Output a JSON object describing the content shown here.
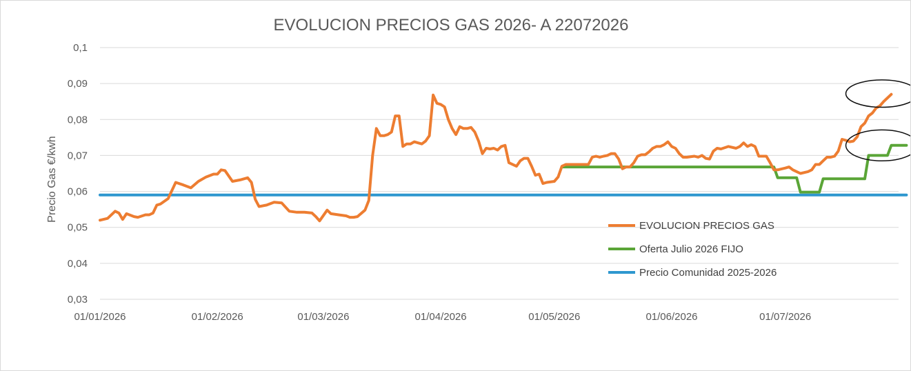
{
  "chart_data": {
    "type": "line",
    "title": "EVOLUCION PRECIOS GAS 2026- A 22072026",
    "xlabel": "",
    "ylabel": "Precio Gas €/kwh",
    "ylim": [
      0.03,
      0.1
    ],
    "yticks": [
      "0,03",
      "0,04",
      "0,05",
      "0,06",
      "0,07",
      "0,08",
      "0,09",
      "0,1"
    ],
    "ytick_values": [
      0.03,
      0.04,
      0.05,
      0.06,
      0.07,
      0.08,
      0.09,
      0.1
    ],
    "xticks": [
      "01/01/2026",
      "01/02/2026",
      "01/03/2026",
      "01/04/2026",
      "01/05/2026",
      "01/06/2026",
      "01/07/2026"
    ],
    "xtick_days": [
      0,
      31,
      59,
      90,
      120,
      151,
      181
    ],
    "xlim_days": [
      0,
      204
    ],
    "grid": "horizontal",
    "legend_position": "bottom-right",
    "series": [
      {
        "name": "EVOLUCION PRECIOS GAS",
        "color": "#ed7d31",
        "points": [
          [
            0,
            0.052
          ],
          [
            2,
            0.0525
          ],
          [
            4,
            0.0545
          ],
          [
            5,
            0.054
          ],
          [
            6,
            0.0522
          ],
          [
            7,
            0.0538
          ],
          [
            9,
            0.053
          ],
          [
            10,
            0.0528
          ],
          [
            12,
            0.0535
          ],
          [
            13,
            0.0535
          ],
          [
            14,
            0.054
          ],
          [
            15,
            0.0562
          ],
          [
            16,
            0.0565
          ],
          [
            18,
            0.058
          ],
          [
            20,
            0.0625
          ],
          [
            22,
            0.0618
          ],
          [
            24,
            0.061
          ],
          [
            26,
            0.0628
          ],
          [
            28,
            0.064
          ],
          [
            30,
            0.0648
          ],
          [
            31,
            0.0648
          ],
          [
            32,
            0.066
          ],
          [
            33,
            0.0658
          ],
          [
            35,
            0.0628
          ],
          [
            37,
            0.0632
          ],
          [
            39,
            0.0638
          ],
          [
            40,
            0.0625
          ],
          [
            41,
            0.0578
          ],
          [
            42,
            0.0558
          ],
          [
            44,
            0.0562
          ],
          [
            46,
            0.057
          ],
          [
            48,
            0.0568
          ],
          [
            50,
            0.0545
          ],
          [
            52,
            0.0542
          ],
          [
            54,
            0.0542
          ],
          [
            56,
            0.054
          ],
          [
            57,
            0.053
          ],
          [
            58,
            0.0518
          ],
          [
            60,
            0.0548
          ],
          [
            61,
            0.0538
          ],
          [
            63,
            0.0535
          ],
          [
            65,
            0.0532
          ],
          [
            66,
            0.0528
          ],
          [
            67,
            0.0528
          ],
          [
            68,
            0.053
          ],
          [
            70,
            0.0548
          ],
          [
            71,
            0.0575
          ],
          [
            72,
            0.07
          ],
          [
            73,
            0.0775
          ],
          [
            74,
            0.0755
          ],
          [
            75,
            0.0755
          ],
          [
            76,
            0.0758
          ],
          [
            77,
            0.0765
          ],
          [
            78,
            0.081
          ],
          [
            79,
            0.081
          ],
          [
            80,
            0.0725
          ],
          [
            81,
            0.0732
          ],
          [
            82,
            0.0732
          ],
          [
            83,
            0.0738
          ],
          [
            84,
            0.0735
          ],
          [
            85,
            0.0732
          ],
          [
            86,
            0.074
          ],
          [
            87,
            0.0755
          ],
          [
            88,
            0.0868
          ],
          [
            89,
            0.0845
          ],
          [
            90,
            0.0842
          ],
          [
            91,
            0.0835
          ],
          [
            92,
            0.08
          ],
          [
            93,
            0.0775
          ],
          [
            94,
            0.0758
          ],
          [
            95,
            0.078
          ],
          [
            96,
            0.0775
          ],
          [
            97,
            0.0775
          ],
          [
            98,
            0.0778
          ],
          [
            99,
            0.0765
          ],
          [
            100,
            0.074
          ],
          [
            101,
            0.0705
          ],
          [
            102,
            0.072
          ],
          [
            103,
            0.0718
          ],
          [
            104,
            0.072
          ],
          [
            105,
            0.0715
          ],
          [
            106,
            0.0725
          ],
          [
            107,
            0.0728
          ],
          [
            108,
            0.068
          ],
          [
            110,
            0.067
          ],
          [
            111,
            0.0685
          ],
          [
            112,
            0.0692
          ],
          [
            113,
            0.0692
          ],
          [
            114,
            0.067
          ],
          [
            115,
            0.0645
          ],
          [
            116,
            0.0648
          ],
          [
            117,
            0.0622
          ],
          [
            118,
            0.0625
          ],
          [
            120,
            0.0628
          ],
          [
            121,
            0.064
          ],
          [
            122,
            0.067
          ],
          [
            123,
            0.0675
          ],
          [
            125,
            0.0675
          ],
          [
            127,
            0.0675
          ],
          [
            129,
            0.0675
          ],
          [
            130,
            0.0695
          ],
          [
            131,
            0.0698
          ],
          [
            132,
            0.0695
          ],
          [
            133,
            0.0698
          ],
          [
            134,
            0.07
          ],
          [
            135,
            0.0705
          ],
          [
            136,
            0.0705
          ],
          [
            137,
            0.069
          ],
          [
            138,
            0.0663
          ],
          [
            139,
            0.0668
          ],
          [
            140,
            0.0668
          ],
          [
            141,
            0.068
          ],
          [
            142,
            0.0698
          ],
          [
            143,
            0.0702
          ],
          [
            144,
            0.0702
          ],
          [
            145,
            0.071
          ],
          [
            146,
            0.072
          ],
          [
            147,
            0.0725
          ],
          [
            148,
            0.0725
          ],
          [
            149,
            0.073
          ],
          [
            150,
            0.0738
          ],
          [
            151,
            0.0725
          ],
          [
            152,
            0.072
          ],
          [
            153,
            0.0705
          ],
          [
            154,
            0.0695
          ],
          [
            155,
            0.0695
          ],
          [
            157,
            0.0698
          ],
          [
            158,
            0.0695
          ],
          [
            159,
            0.07
          ],
          [
            160,
            0.0692
          ],
          [
            161,
            0.069
          ],
          [
            162,
            0.0712
          ],
          [
            163,
            0.072
          ],
          [
            164,
            0.0718
          ],
          [
            166,
            0.0725
          ],
          [
            168,
            0.072
          ],
          [
            169,
            0.0725
          ],
          [
            170,
            0.0735
          ],
          [
            171,
            0.0725
          ],
          [
            172,
            0.073
          ],
          [
            173,
            0.0725
          ],
          [
            174,
            0.0698
          ],
          [
            176,
            0.0698
          ],
          [
            177,
            0.068
          ],
          [
            178,
            0.066
          ],
          [
            179,
            0.066
          ],
          [
            181,
            0.0665
          ],
          [
            182,
            0.0668
          ],
          [
            183,
            0.066
          ],
          [
            184,
            0.0655
          ],
          [
            185,
            0.065
          ],
          [
            187,
            0.0655
          ],
          [
            188,
            0.066
          ],
          [
            189,
            0.0675
          ],
          [
            190,
            0.0675
          ],
          [
            191,
            0.0685
          ],
          [
            192,
            0.0695
          ],
          [
            193,
            0.0695
          ],
          [
            194,
            0.0698
          ],
          [
            195,
            0.0712
          ],
          [
            196,
            0.0745
          ],
          [
            197,
            0.0742
          ],
          [
            198,
            0.0738
          ],
          [
            199,
            0.074
          ],
          [
            200,
            0.0752
          ],
          [
            201,
            0.078
          ],
          [
            202,
            0.079
          ],
          [
            203,
            0.081
          ],
          [
            204,
            0.0818
          ],
          [
            205,
            0.0832
          ],
          [
            206,
            0.0838
          ],
          [
            207,
            0.085
          ],
          [
            208,
            0.086
          ],
          [
            209,
            0.087
          ]
        ]
      },
      {
        "name": "Oferta Julio 2026 FIJO",
        "color": "#5aa537",
        "points": [
          [
            122,
            0.0668
          ],
          [
            178,
            0.0668
          ],
          [
            179,
            0.0638
          ],
          [
            184,
            0.0638
          ],
          [
            185,
            0.0598
          ],
          [
            190,
            0.0598
          ],
          [
            191,
            0.0635
          ],
          [
            202,
            0.0635
          ],
          [
            203,
            0.07
          ],
          [
            208,
            0.07
          ],
          [
            209,
            0.0728
          ],
          [
            213,
            0.0728
          ]
        ]
      },
      {
        "name": "Precio Comunidad 2025-2026",
        "color": "#2e97cf",
        "points": [
          [
            0,
            0.059
          ],
          [
            213,
            0.059
          ]
        ]
      }
    ],
    "annotations": [
      {
        "type": "ellipse",
        "x_day": 206.5,
        "y": 0.0872,
        "rx_days": 9.5,
        "ry": 0.0038
      },
      {
        "type": "ellipse",
        "x_day": 206.5,
        "y": 0.0728,
        "rx_days": 9.5,
        "ry": 0.0043
      }
    ]
  }
}
